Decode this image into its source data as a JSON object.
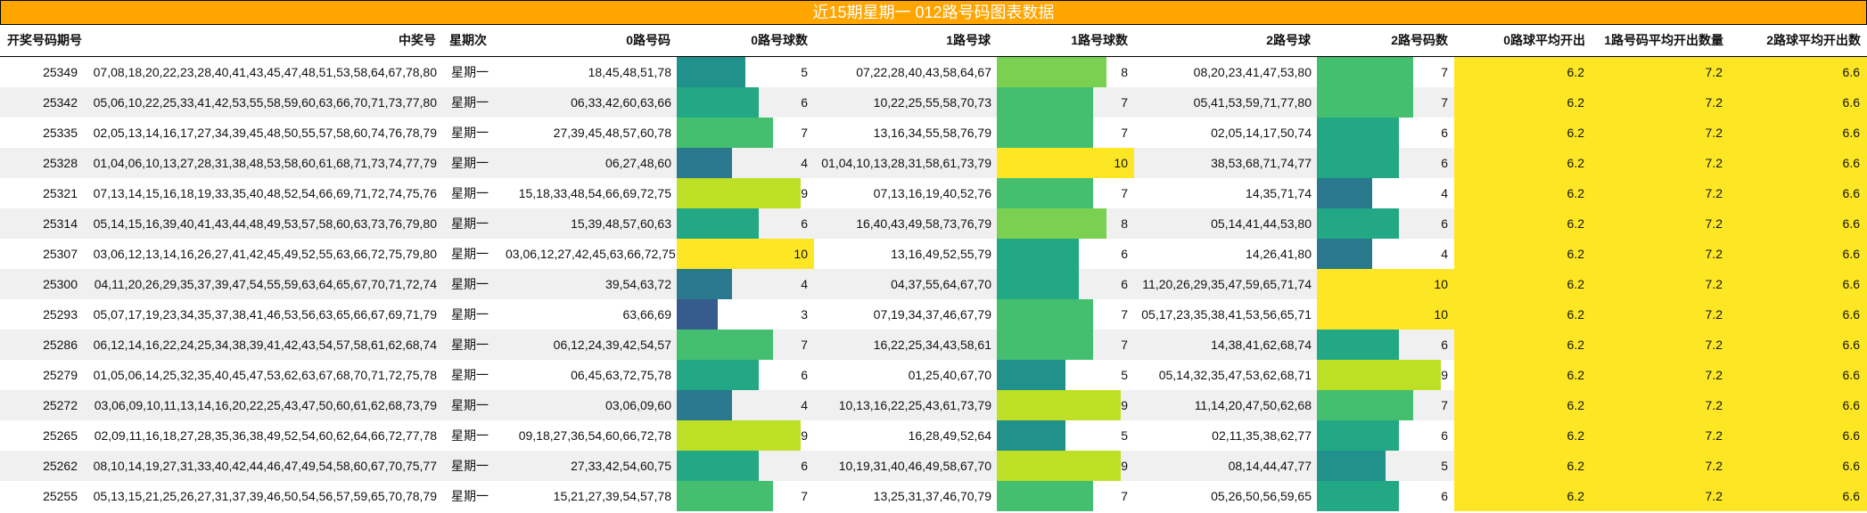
{
  "title": "近15期星期一 012路号码图表数据",
  "headers": [
    "开奖号码期号",
    "中奖号",
    "星期次",
    "0路号码",
    "0路号球数",
    "1路号球",
    "1路号球数",
    "2路号球",
    "2路号码数",
    "0路球平均开出",
    "1路号码平均开出数量",
    "2路球平均开出数"
  ],
  "bar_max": 10,
  "bar_colors": {
    "3": "#365c8d",
    "4": "#2a788e",
    "5": "#21918c",
    "6": "#22a884",
    "7": "#44bf70",
    "8": "#7ad151",
    "9": "#bddf26",
    "10": "#fde725"
  },
  "avg_color": "#fde725",
  "rows": [
    {
      "issue": "25349",
      "numbers": "07,08,18,20,22,23,28,40,41,43,45,47,48,51,53,58,64,67,78,80",
      "weekday": "星期一",
      "r0": "18,45,48,51,78",
      "c0": 5,
      "r1": "07,22,28,40,43,58,64,67",
      "c1": 8,
      "r2": "08,20,23,41,47,53,80",
      "c2": 7,
      "a0": "6.2",
      "a1": "7.2",
      "a2": "6.6"
    },
    {
      "issue": "25342",
      "numbers": "05,06,10,22,25,33,41,42,53,55,58,59,60,63,66,70,71,73,77,80",
      "weekday": "星期一",
      "r0": "06,33,42,60,63,66",
      "c0": 6,
      "r1": "10,22,25,55,58,70,73",
      "c1": 7,
      "r2": "05,41,53,59,71,77,80",
      "c2": 7,
      "a0": "6.2",
      "a1": "7.2",
      "a2": "6.6"
    },
    {
      "issue": "25335",
      "numbers": "02,05,13,14,16,17,27,34,39,45,48,50,55,57,58,60,74,76,78,79",
      "weekday": "星期一",
      "r0": "27,39,45,48,57,60,78",
      "c0": 7,
      "r1": "13,16,34,55,58,76,79",
      "c1": 7,
      "r2": "02,05,14,17,50,74",
      "c2": 6,
      "a0": "6.2",
      "a1": "7.2",
      "a2": "6.6"
    },
    {
      "issue": "25328",
      "numbers": "01,04,06,10,13,27,28,31,38,48,53,58,60,61,68,71,73,74,77,79",
      "weekday": "星期一",
      "r0": "06,27,48,60",
      "c0": 4,
      "r1": "01,04,10,13,28,31,58,61,73,79",
      "c1": 10,
      "r2": "38,53,68,71,74,77",
      "c2": 6,
      "a0": "6.2",
      "a1": "7.2",
      "a2": "6.6"
    },
    {
      "issue": "25321",
      "numbers": "07,13,14,15,16,18,19,33,35,40,48,52,54,66,69,71,72,74,75,76",
      "weekday": "星期一",
      "r0": "15,18,33,48,54,66,69,72,75",
      "c0": 9,
      "r1": "07,13,16,19,40,52,76",
      "c1": 7,
      "r2": "14,35,71,74",
      "c2": 4,
      "a0": "6.2",
      "a1": "7.2",
      "a2": "6.6"
    },
    {
      "issue": "25314",
      "numbers": "05,14,15,16,39,40,41,43,44,48,49,53,57,58,60,63,73,76,79,80",
      "weekday": "星期一",
      "r0": "15,39,48,57,60,63",
      "c0": 6,
      "r1": "16,40,43,49,58,73,76,79",
      "c1": 8,
      "r2": "05,14,41,44,53,80",
      "c2": 6,
      "a0": "6.2",
      "a1": "7.2",
      "a2": "6.6"
    },
    {
      "issue": "25307",
      "numbers": "03,06,12,13,14,16,26,27,41,42,45,49,52,55,63,66,72,75,79,80",
      "weekday": "星期一",
      "r0": "03,06,12,27,42,45,63,66,72,75",
      "c0": 10,
      "r1": "13,16,49,52,55,79",
      "c1": 6,
      "r2": "14,26,41,80",
      "c2": 4,
      "a0": "6.2",
      "a1": "7.2",
      "a2": "6.6"
    },
    {
      "issue": "25300",
      "numbers": "04,11,20,26,29,35,37,39,47,54,55,59,63,64,65,67,70,71,72,74",
      "weekday": "星期一",
      "r0": "39,54,63,72",
      "c0": 4,
      "r1": "04,37,55,64,67,70",
      "c1": 6,
      "r2": "11,20,26,29,35,47,59,65,71,74",
      "c2": 10,
      "a0": "6.2",
      "a1": "7.2",
      "a2": "6.6"
    },
    {
      "issue": "25293",
      "numbers": "05,07,17,19,23,34,35,37,38,41,46,53,56,63,65,66,67,69,71,79",
      "weekday": "星期一",
      "r0": "63,66,69",
      "c0": 3,
      "r1": "07,19,34,37,46,67,79",
      "c1": 7,
      "r2": "05,17,23,35,38,41,53,56,65,71",
      "c2": 10,
      "a0": "6.2",
      "a1": "7.2",
      "a2": "6.6"
    },
    {
      "issue": "25286",
      "numbers": "06,12,14,16,22,24,25,34,38,39,41,42,43,54,57,58,61,62,68,74",
      "weekday": "星期一",
      "r0": "06,12,24,39,42,54,57",
      "c0": 7,
      "r1": "16,22,25,34,43,58,61",
      "c1": 7,
      "r2": "14,38,41,62,68,74",
      "c2": 6,
      "a0": "6.2",
      "a1": "7.2",
      "a2": "6.6"
    },
    {
      "issue": "25279",
      "numbers": "01,05,06,14,25,32,35,40,45,47,53,62,63,67,68,70,71,72,75,78",
      "weekday": "星期一",
      "r0": "06,45,63,72,75,78",
      "c0": 6,
      "r1": "01,25,40,67,70",
      "c1": 5,
      "r2": "05,14,32,35,47,53,62,68,71",
      "c2": 9,
      "a0": "6.2",
      "a1": "7.2",
      "a2": "6.6"
    },
    {
      "issue": "25272",
      "numbers": "03,06,09,10,11,13,14,16,20,22,25,43,47,50,60,61,62,68,73,79",
      "weekday": "星期一",
      "r0": "03,06,09,60",
      "c0": 4,
      "r1": "10,13,16,22,25,43,61,73,79",
      "c1": 9,
      "r2": "11,14,20,47,50,62,68",
      "c2": 7,
      "a0": "6.2",
      "a1": "7.2",
      "a2": "6.6"
    },
    {
      "issue": "25265",
      "numbers": "02,09,11,16,18,27,28,35,36,38,49,52,54,60,62,64,66,72,77,78",
      "weekday": "星期一",
      "r0": "09,18,27,36,54,60,66,72,78",
      "c0": 9,
      "r1": "16,28,49,52,64",
      "c1": 5,
      "r2": "02,11,35,38,62,77",
      "c2": 6,
      "a0": "6.2",
      "a1": "7.2",
      "a2": "6.6"
    },
    {
      "issue": "25262",
      "numbers": "08,10,14,19,27,31,33,40,42,44,46,47,49,54,58,60,67,70,75,77",
      "weekday": "星期一",
      "r0": "27,33,42,54,60,75",
      "c0": 6,
      "r1": "10,19,31,40,46,49,58,67,70",
      "c1": 9,
      "r2": "08,14,44,47,77",
      "c2": 5,
      "a0": "6.2",
      "a1": "7.2",
      "a2": "6.6"
    },
    {
      "issue": "25255",
      "numbers": "05,13,15,21,25,26,27,31,37,39,46,50,54,56,57,59,65,70,78,79",
      "weekday": "星期一",
      "r0": "15,21,27,39,54,57,78",
      "c0": 7,
      "r1": "13,25,31,37,46,70,79",
      "c1": 7,
      "r2": "05,26,50,56,59,65",
      "c2": 6,
      "a0": "6.2",
      "a1": "7.2",
      "a2": "6.6"
    }
  ]
}
